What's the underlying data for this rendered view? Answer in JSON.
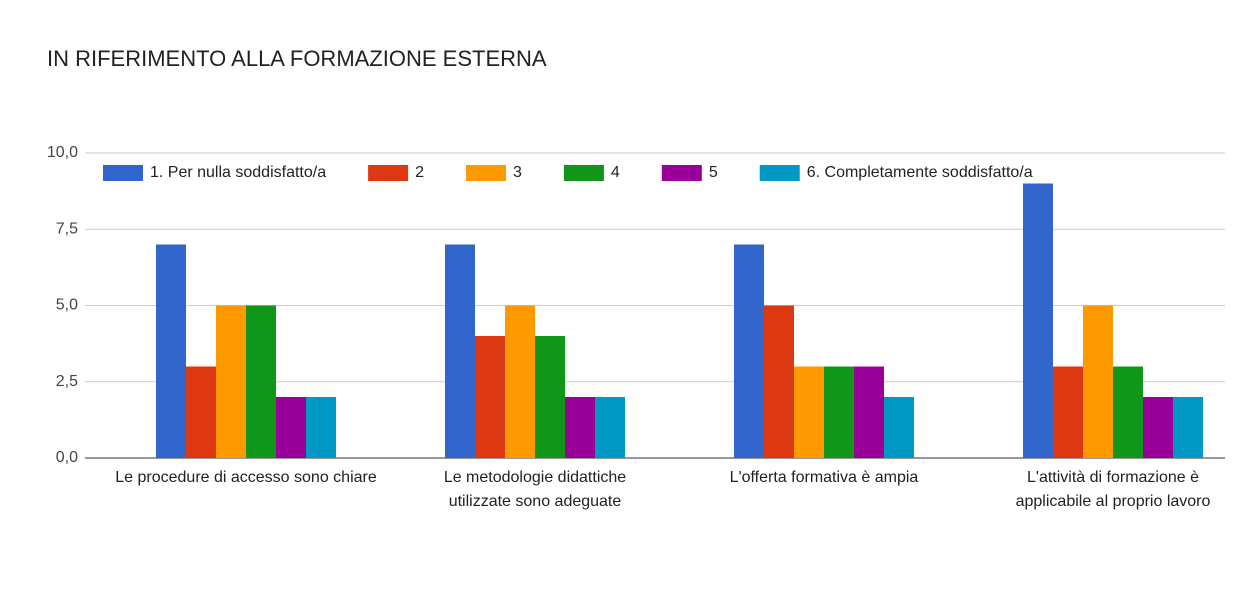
{
  "chart_data": {
    "type": "bar",
    "title": "IN RIFERIMENTO ALLA FORMAZIONE ESTERNA",
    "categories": [
      "Le procedure di accesso sono chiare",
      "Le metodologie didattiche utilizzate sono adeguate",
      "L'offerta formativa è ampia",
      "L'attività di formazione è applicabile al proprio lavoro"
    ],
    "series": [
      {
        "name": "1. Per nulla soddisfatto/a",
        "color": "#3366cc",
        "values": [
          7,
          7,
          7,
          9
        ]
      },
      {
        "name": "2",
        "color": "#dc3912",
        "values": [
          3,
          4,
          5,
          3
        ]
      },
      {
        "name": "3",
        "color": "#ff9900",
        "values": [
          5,
          5,
          3,
          5
        ]
      },
      {
        "name": "4",
        "color": "#109618",
        "values": [
          5,
          4,
          3,
          3
        ]
      },
      {
        "name": "5",
        "color": "#990099",
        "values": [
          2,
          2,
          3,
          2
        ]
      },
      {
        "name": "6. Completamente soddisfatto/a",
        "color": "#0099c6",
        "values": [
          2,
          2,
          2,
          2
        ]
      }
    ],
    "ylim": [
      0,
      10
    ],
    "yticks": [
      {
        "value": 0,
        "label": "0,0"
      },
      {
        "value": 2.5,
        "label": "2,5"
      },
      {
        "value": 5,
        "label": "5,0"
      },
      {
        "value": 7.5,
        "label": "7,5"
      },
      {
        "value": 10,
        "label": "10,0"
      }
    ],
    "grid": true,
    "legend": "top"
  }
}
